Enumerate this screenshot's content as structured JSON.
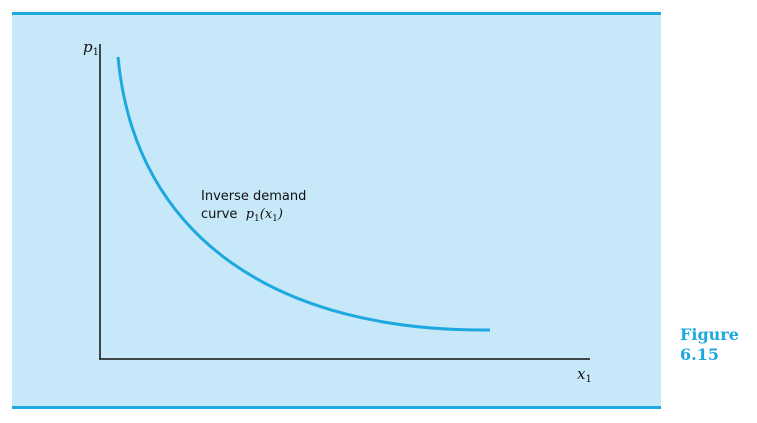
{
  "axes": {
    "y_label": "p",
    "y_label_sub": "1",
    "x_label": "x",
    "x_label_sub": "1"
  },
  "annotation": {
    "line1": "Inverse demand",
    "line2_text": "curve",
    "line2_math_p": "p",
    "line2_math_sub1": "1",
    "line2_math_open": "(x",
    "line2_math_sub2": "1",
    "line2_math_close": ")"
  },
  "figure": {
    "word": "Figure",
    "number": "6.15"
  },
  "colors": {
    "panel_bg": "#c6e8f8",
    "accent": "#1ea8e0",
    "axis": "#111111"
  }
}
